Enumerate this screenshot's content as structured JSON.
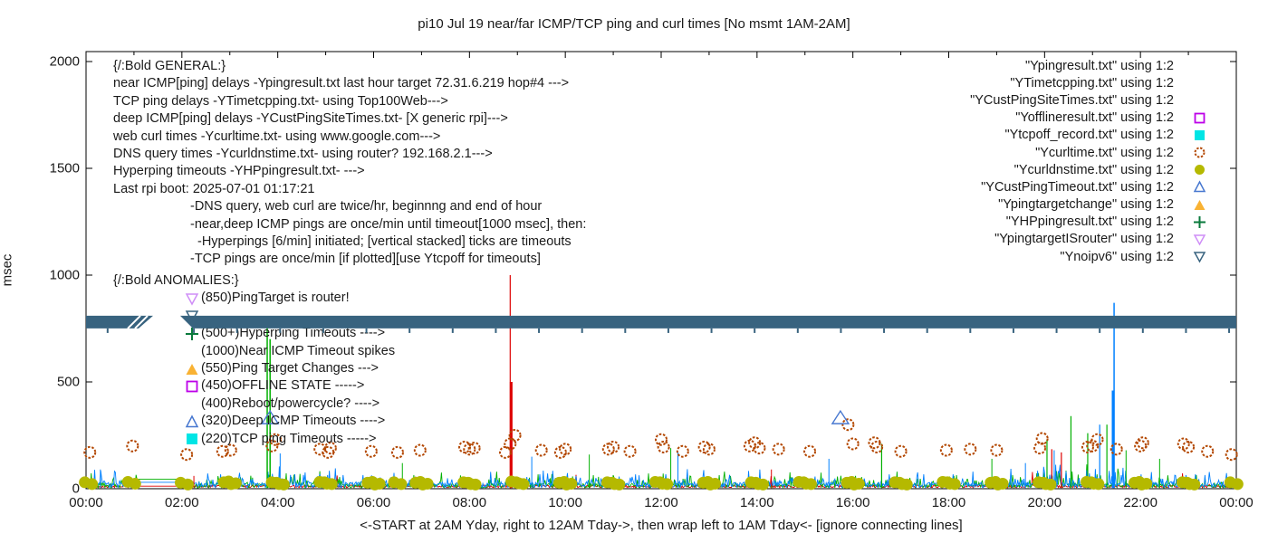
{
  "chart_data": {
    "type": "line",
    "title": "pi10 Jul 19  near/far ICMP/TCP ping and curl times [No msmt 1AM-2AM]",
    "ylabel": "msec",
    "xlabel": "<-START at 2AM Yday, right to 12AM Tday->, then wrap left to 1AM Tday<- [ignore connecting lines]",
    "xlim": [
      0,
      24
    ],
    "ylim": [
      0,
      2000
    ],
    "yticks": [
      0,
      500,
      1000,
      1500,
      2000
    ],
    "xtick_labels": [
      "00:00",
      "02:00",
      "04:00",
      "06:00",
      "08:00",
      "10:00",
      "12:00",
      "14:00",
      "16:00",
      "18:00",
      "20:00",
      "22:00",
      "00:00"
    ],
    "xtick_hours": [
      0,
      2,
      4,
      6,
      8,
      10,
      12,
      14,
      16,
      18,
      20,
      22,
      24
    ],
    "measurement_gap_hours": [
      1.05,
      2.0
    ],
    "noipv6_band": {
      "value_msec": 780,
      "x1": 0,
      "x2": 24,
      "gap": [
        1.285,
        1.965
      ],
      "color": "#38637f"
    },
    "series": [
      {
        "name": "Ypingresult.txt",
        "color": "#dd0000",
        "style": "line",
        "gap_level": 12,
        "spikes": [
          [
            8.85,
            1000,
            1.2
          ],
          [
            8.87,
            500,
            3
          ],
          [
            2.25,
            60,
            1
          ],
          [
            14.3,
            90,
            1
          ],
          [
            20.15,
            185,
            1.2
          ],
          [
            20.35,
            170,
            1.2
          ]
        ]
      },
      {
        "name": "YTimetcpping.txt",
        "color": "#00b000",
        "style": "line",
        "gap_level": 45,
        "spikes": [
          [
            3.78,
            760,
            1.5
          ],
          [
            3.84,
            700,
            1.5
          ],
          [
            6.6,
            120,
            1
          ],
          [
            10.5,
            160,
            1
          ],
          [
            12.2,
            190,
            1
          ],
          [
            16.6,
            210,
            1.2
          ],
          [
            18.9,
            140,
            1
          ],
          [
            20.05,
            230,
            1.2
          ],
          [
            20.55,
            340,
            1.2
          ],
          [
            20.9,
            260,
            1.2
          ],
          [
            21.3,
            300,
            1.2
          ],
          [
            21.7,
            180,
            1
          ],
          [
            22.4,
            140,
            1
          ]
        ]
      },
      {
        "name": "YCustPingSiteTimes.txt",
        "color": "#0080ff",
        "style": "line",
        "gap_level": 30,
        "spikes": [
          [
            0.3,
            90,
            1
          ],
          [
            4.05,
            165,
            1
          ],
          [
            9.3,
            150,
            1
          ],
          [
            12.35,
            170,
            1
          ],
          [
            15.5,
            140,
            1
          ],
          [
            19.6,
            120,
            1
          ],
          [
            20.2,
            180,
            1
          ],
          [
            21.15,
            300,
            1.2
          ],
          [
            21.43,
            460,
            3
          ],
          [
            21.45,
            870,
            1.5
          ]
        ]
      }
    ],
    "curl_points_Ycurltime": [
      [
        0.08,
        170
      ],
      [
        0.97,
        200
      ],
      [
        2.1,
        160
      ],
      [
        2.85,
        175
      ],
      [
        3.02,
        180
      ],
      [
        3.88,
        200
      ],
      [
        3.95,
        230
      ],
      [
        4.88,
        185
      ],
      [
        5.05,
        170
      ],
      [
        5.1,
        190
      ],
      [
        5.95,
        175
      ],
      [
        6.5,
        170
      ],
      [
        6.97,
        180
      ],
      [
        7.9,
        195
      ],
      [
        8.0,
        185
      ],
      [
        8.1,
        190
      ],
      [
        8.75,
        170
      ],
      [
        8.85,
        210
      ],
      [
        8.95,
        250
      ],
      [
        9.5,
        180
      ],
      [
        9.9,
        170
      ],
      [
        10.0,
        185
      ],
      [
        10.9,
        185
      ],
      [
        11.0,
        195
      ],
      [
        11.35,
        175
      ],
      [
        12.0,
        230
      ],
      [
        12.05,
        195
      ],
      [
        12.45,
        175
      ],
      [
        12.9,
        195
      ],
      [
        13.0,
        185
      ],
      [
        13.85,
        200
      ],
      [
        13.95,
        215
      ],
      [
        14.05,
        190
      ],
      [
        14.45,
        185
      ],
      [
        15.1,
        175
      ],
      [
        15.9,
        300
      ],
      [
        16.0,
        210
      ],
      [
        16.45,
        215
      ],
      [
        16.5,
        195
      ],
      [
        17.0,
        175
      ],
      [
        17.95,
        180
      ],
      [
        18.45,
        185
      ],
      [
        19.0,
        180
      ],
      [
        19.9,
        190
      ],
      [
        19.95,
        235
      ],
      [
        20.9,
        195
      ],
      [
        21.0,
        200
      ],
      [
        21.1,
        230
      ],
      [
        21.5,
        185
      ],
      [
        22.0,
        200
      ],
      [
        22.05,
        215
      ],
      [
        22.9,
        210
      ],
      [
        23.0,
        195
      ],
      [
        23.4,
        175
      ],
      [
        23.9,
        160
      ]
    ],
    "dns_points_Ycurldnstime": [
      [
        0.05,
        30
      ],
      [
        0.95,
        32
      ],
      [
        2.05,
        28
      ],
      [
        2.95,
        30
      ],
      [
        3.05,
        34
      ],
      [
        3.95,
        30
      ],
      [
        4.05,
        28
      ],
      [
        4.95,
        32
      ],
      [
        5.05,
        30
      ],
      [
        5.95,
        28
      ],
      [
        6.05,
        32
      ],
      [
        6.5,
        30
      ],
      [
        6.95,
        28
      ],
      [
        7.05,
        32
      ],
      [
        7.95,
        30
      ],
      [
        8.05,
        28
      ],
      [
        8.95,
        34
      ],
      [
        9.05,
        30
      ],
      [
        9.95,
        28
      ],
      [
        10.05,
        32
      ],
      [
        10.95,
        30
      ],
      [
        11.05,
        28
      ],
      [
        11.95,
        32
      ],
      [
        12.05,
        30
      ],
      [
        12.95,
        28
      ],
      [
        13.05,
        32
      ],
      [
        13.95,
        30
      ],
      [
        14.05,
        28
      ],
      [
        14.95,
        32
      ],
      [
        15.05,
        30
      ],
      [
        15.95,
        28
      ],
      [
        16.05,
        32
      ],
      [
        16.95,
        30
      ],
      [
        17.05,
        28
      ],
      [
        17.95,
        32
      ],
      [
        18.05,
        30
      ],
      [
        18.95,
        28
      ],
      [
        19.05,
        32
      ],
      [
        19.95,
        30
      ],
      [
        20.05,
        28
      ],
      [
        20.95,
        32
      ],
      [
        21.05,
        30
      ],
      [
        21.95,
        28
      ],
      [
        22.05,
        32
      ],
      [
        22.95,
        30
      ],
      [
        23.05,
        28
      ],
      [
        23.95,
        30
      ]
    ],
    "deep_timeout_triangles_YCustPingTimeout": [
      [
        3.84,
        330
      ],
      [
        15.74,
        330
      ]
    ]
  },
  "legend": [
    {
      "label": "\"Ypingresult.txt\" using 1:2",
      "sample": "line",
      "color": "#dd0000"
    },
    {
      "label": "\"YTimetcpping.txt\" using 1:2",
      "sample": "line",
      "color": "#00b000"
    },
    {
      "label": "\"YCustPingSiteTimes.txt\" using 1:2",
      "sample": "line",
      "color": "#0080ff"
    },
    {
      "label": "\"Yofflineresult.txt\" using 1:2",
      "sample": "square-open",
      "color": "#bd00e8"
    },
    {
      "label": "\"Ytcpoff_record.txt\" using 1:2",
      "sample": "square-fill",
      "color": "#00e5e5"
    },
    {
      "label": "\"Ycurltime.txt\" using 1:2",
      "sample": "circle-open",
      "color": "#b34700"
    },
    {
      "label": "\"Ycurldnstime.txt\" using 1:2",
      "sample": "circle-fill",
      "color": "#b5b900"
    },
    {
      "label": "\"YCustPingTimeout.txt\" using 1:2",
      "sample": "tri-up-open",
      "color": "#4878d0"
    },
    {
      "label": "\"Ypingtargetchange\" using 1:2",
      "sample": "tri-up-fill",
      "color": "#f9b233"
    },
    {
      "label": "\"YHPpingresult.txt\" using 1:2",
      "sample": "plus",
      "color": "#0a7a3c"
    },
    {
      "label": "\"YpingtargetISrouter\" using 1:2",
      "sample": "tri-down-open",
      "color": "#cf8ef7"
    },
    {
      "label": "\"Ynoipv6\" using 1:2",
      "sample": "tri-down-open",
      "color": "#38637f"
    }
  ],
  "general_notes": [
    {
      "text": "{/:Bold GENERAL:}",
      "indent": 0
    },
    {
      "text": "near ICMP[ping] delays -Ypingresult.txt last hour target 72.31.6.219 hop#4 --->",
      "indent": 0
    },
    {
      "text": "TCP ping delays -YTimetcpping.txt- using Top100Web--->",
      "indent": 0
    },
    {
      "text": "deep ICMP[ping] delays -YCustPingSiteTimes.txt- [X generic rpi]--->",
      "indent": 0
    },
    {
      "text": "web curl times -Ycurltime.txt- using www.google.com--->",
      "indent": 0
    },
    {
      "text": "DNS query times -Ycurldnstime.txt- using router? 192.168.2.1--->",
      "indent": 0
    },
    {
      "text": "Hyperping timeouts -YHPpingresult.txt- --->",
      "indent": 0
    },
    {
      "text": "Last rpi boot: 2025-07-01 01:17:21",
      "indent": 0
    },
    {
      "text": "-DNS query, web curl are twice/hr, beginnng and end of hour",
      "indent": 85
    },
    {
      "text": "-near,deep ICMP pings are once/min until timeout[1000 msec], then:",
      "indent": 85
    },
    {
      "text": "-Hyperpings [6/min] initiated; [vertical stacked] ticks are timeouts",
      "indent": 93
    },
    {
      "text": "-TCP pings are once/min [if plotted][use Ytcpoff for timeouts]",
      "indent": 85
    }
  ],
  "anomalies_notes": {
    "header": "{/:Bold ANOMALIES:}",
    "rows": [
      {
        "marker": "tri-down-open",
        "color": "#cf8ef7",
        "text": "(850)PingTarget is router!"
      },
      {
        "marker": "tri-down-open",
        "color": "#38637f",
        "text": "",
        "note": "hidden-behind-band"
      },
      {
        "marker": "plus",
        "color": "#0a7a3c",
        "text": "(500+)Hyperping Timeouts ---->"
      },
      {
        "marker": "none",
        "color": "",
        "text": "(1000)Near ICMP Timeout spikes"
      },
      {
        "marker": "tri-up-fill",
        "color": "#f9b233",
        "text": "(550)Ping Target Changes --->"
      },
      {
        "marker": "square-open",
        "color": "#bd00e8",
        "text": "(450)OFFLINE STATE ----->"
      },
      {
        "marker": "none",
        "color": "",
        "text": "(400)Reboot/powercycle? ---->"
      },
      {
        "marker": "tri-up-open",
        "color": "#4878d0",
        "text": "(320)Deep ICMP Timeouts ---->"
      },
      {
        "marker": "square-fill",
        "color": "#00e5e5",
        "text": "(220)TCP ping Timeouts ----->"
      }
    ]
  }
}
